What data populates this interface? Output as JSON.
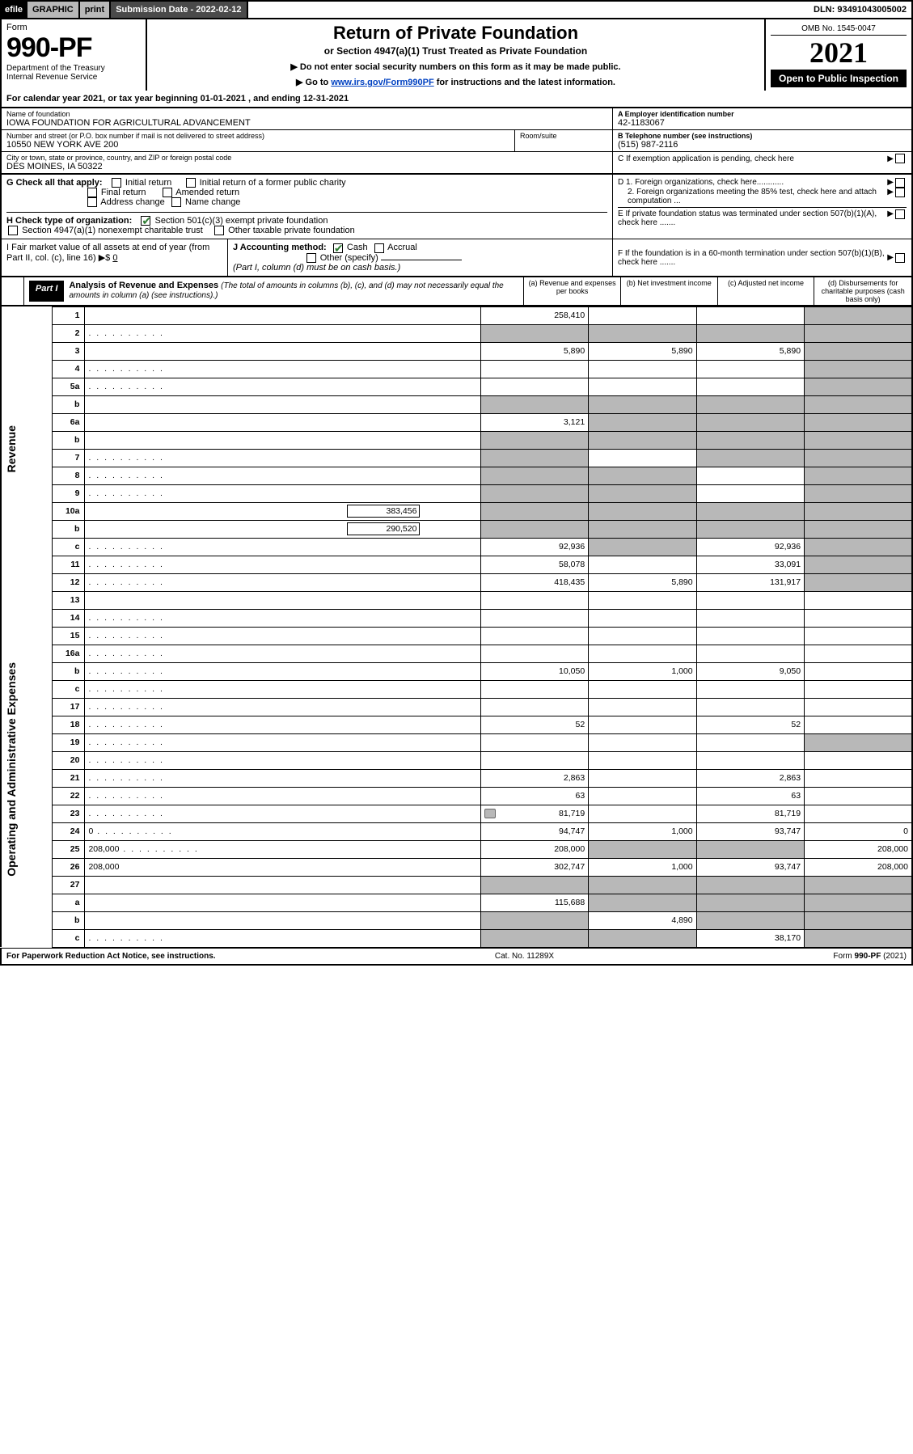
{
  "topbar": {
    "efile": "efile",
    "graphic": "GRAPHIC",
    "print": "print",
    "submission_label": "Submission Date - 2022-02-12",
    "dln": "DLN: 93491043005002"
  },
  "header": {
    "form_word": "Form",
    "form_no": "990-PF",
    "dept1": "Department of the Treasury",
    "dept2": "Internal Revenue Service",
    "title": "Return of Private Foundation",
    "subtitle": "or Section 4947(a)(1) Trust Treated as Private Foundation",
    "instr1": "▶ Do not enter social security numbers on this form as it may be made public.",
    "instr2_pre": "▶ Go to ",
    "instr2_link": "www.irs.gov/Form990PF",
    "instr2_post": " for instructions and the latest information.",
    "omb": "OMB No. 1545-0047",
    "year": "2021",
    "open": "Open to Public Inspection"
  },
  "calyear": "For calendar year 2021, or tax year beginning 01-01-2021             , and ending 12-31-2021",
  "info": {
    "name_label": "Name of foundation",
    "name": "IOWA FOUNDATION FOR AGRICULTURAL ADVANCEMENT",
    "addr_label": "Number and street (or P.O. box number if mail is not delivered to street address)",
    "addr": "10550 NEW YORK AVE 200",
    "room_label": "Room/suite",
    "city_label": "City or town, state or province, country, and ZIP or foreign postal code",
    "city": "DES MOINES, IA  50322",
    "ein_label": "A Employer identification number",
    "ein": "42-1183067",
    "tel_label": "B Telephone number (see instructions)",
    "tel": "(515) 987-2116",
    "c": "C If exemption application is pending, check here",
    "d1": "D 1. Foreign organizations, check here............",
    "d2": "2. Foreign organizations meeting the 85% test, check here and attach computation ...",
    "e": "E  If private foundation status was terminated under section 507(b)(1)(A), check here .......",
    "f": "F  If the foundation is in a 60-month termination under section 507(b)(1)(B), check here .......",
    "g_label": "G Check all that apply:",
    "g_opts": [
      "Initial return",
      "Final return",
      "Address change",
      "Initial return of a former public charity",
      "Amended return",
      "Name change"
    ],
    "h_label": "H Check type of organization:",
    "h1": "Section 501(c)(3) exempt private foundation",
    "h2": "Section 4947(a)(1) nonexempt charitable trust",
    "h3": "Other taxable private foundation",
    "i_label": "I Fair market value of all assets at end of year (from Part II, col. (c), line 16) ▶$",
    "i_val": "0",
    "j_label": "J Accounting method:",
    "j_cash": "Cash",
    "j_accr": "Accrual",
    "j_other": "Other (specify)",
    "j_note": "(Part I, column (d) must be on cash basis.)"
  },
  "part1": {
    "tab": "Part I",
    "title": "Analysis of Revenue and Expenses",
    "title_sub": " (The total of amounts in columns (b), (c), and (d) may not necessarily equal the amounts in column (a) (see instructions).)",
    "cols": {
      "a": "(a)   Revenue and expenses per books",
      "b": "(b)   Net investment income",
      "c": "(c)   Adjusted net income",
      "d": "(d)   Disbursements for charitable purposes (cash basis only)"
    }
  },
  "sidelabels": {
    "rev": "Revenue",
    "exp": "Operating and Administrative Expenses"
  },
  "rows": [
    {
      "n": "1",
      "d": "",
      "a": "258,410",
      "b": "",
      "c": "",
      "dgrey": true
    },
    {
      "n": "2",
      "d": "",
      "dots": true,
      "a": "",
      "b": "",
      "c": "",
      "allgrey": true
    },
    {
      "n": "3",
      "d": "",
      "a": "5,890",
      "b": "5,890",
      "c": "5,890",
      "dgrey": true
    },
    {
      "n": "4",
      "d": "",
      "dots": true,
      "a": "",
      "b": "",
      "c": "",
      "dgrey": true
    },
    {
      "n": "5a",
      "d": "",
      "dots": true,
      "a": "",
      "b": "",
      "c": "",
      "dgrey": true
    },
    {
      "n": "b",
      "d": "",
      "inset": true,
      "a": "",
      "b": "",
      "c": "",
      "allgrey": true
    },
    {
      "n": "6a",
      "d": "",
      "a": "3,121",
      "b": "",
      "c": "",
      "bcd_grey": true
    },
    {
      "n": "b",
      "d": "",
      "inset": true,
      "a": "",
      "b": "",
      "c": "",
      "allgrey": true
    },
    {
      "n": "7",
      "d": "",
      "dots": true,
      "a": "",
      "b": "",
      "c": "",
      "agrey": true,
      "cdgrey": true
    },
    {
      "n": "8",
      "d": "",
      "dots": true,
      "a": "",
      "b": "",
      "c": "",
      "abgrey": true,
      "dgrey": true
    },
    {
      "n": "9",
      "d": "",
      "dots": true,
      "a": "",
      "b": "",
      "c": "",
      "abgrey": true,
      "dgrey": true
    },
    {
      "n": "10a",
      "d": "",
      "insetval": "383,456",
      "a": "",
      "b": "",
      "c": "",
      "allgrey": true
    },
    {
      "n": "b",
      "d": "",
      "dots": true,
      "insetval": "290,520",
      "a": "",
      "b": "",
      "c": "",
      "allgrey": true
    },
    {
      "n": "c",
      "d": "",
      "dots": true,
      "a": "92,936",
      "b": "",
      "c": "92,936",
      "bgrey": true,
      "dgrey": true
    },
    {
      "n": "11",
      "d": "",
      "dots": true,
      "a": "58,078",
      "b": "",
      "c": "33,091",
      "dgrey": true
    },
    {
      "n": "12",
      "d": "",
      "dots": true,
      "a": "418,435",
      "b": "5,890",
      "c": "131,917",
      "dgrey": true,
      "bold": true
    },
    {
      "n": "13",
      "d": "",
      "a": "",
      "b": "",
      "c": ""
    },
    {
      "n": "14",
      "d": "",
      "dots": true,
      "a": "",
      "b": "",
      "c": ""
    },
    {
      "n": "15",
      "d": "",
      "dots": true,
      "a": "",
      "b": "",
      "c": ""
    },
    {
      "n": "16a",
      "d": "",
      "dots": true,
      "a": "",
      "b": "",
      "c": ""
    },
    {
      "n": "b",
      "d": "",
      "dots": true,
      "a": "10,050",
      "b": "1,000",
      "c": "9,050"
    },
    {
      "n": "c",
      "d": "",
      "dots": true,
      "a": "",
      "b": "",
      "c": ""
    },
    {
      "n": "17",
      "d": "",
      "dots": true,
      "a": "",
      "b": "",
      "c": ""
    },
    {
      "n": "18",
      "d": "",
      "dots": true,
      "a": "52",
      "b": "",
      "c": "52"
    },
    {
      "n": "19",
      "d": "",
      "dots": true,
      "a": "",
      "b": "",
      "c": "",
      "dgrey": true
    },
    {
      "n": "20",
      "d": "",
      "dots": true,
      "a": "",
      "b": "",
      "c": ""
    },
    {
      "n": "21",
      "d": "",
      "dots": true,
      "a": "2,863",
      "b": "",
      "c": "2,863"
    },
    {
      "n": "22",
      "d": "",
      "dots": true,
      "a": "63",
      "b": "",
      "c": "63"
    },
    {
      "n": "23",
      "d": "",
      "dots": true,
      "icon": true,
      "a": "81,719",
      "b": "",
      "c": "81,719"
    },
    {
      "n": "24",
      "d": "0",
      "dots": true,
      "a": "94,747",
      "b": "1,000",
      "c": "93,747"
    },
    {
      "n": "25",
      "d": "208,000",
      "dots": true,
      "a": "208,000",
      "b": "",
      "c": "",
      "bcgrey": true
    },
    {
      "n": "26",
      "d": "208,000",
      "a": "302,747",
      "b": "1,000",
      "c": "93,747"
    },
    {
      "n": "27",
      "d": "",
      "a": "",
      "b": "",
      "c": "",
      "allgrey": true
    },
    {
      "n": "a",
      "d": "",
      "a": "115,688",
      "b": "",
      "c": "",
      "bcd_grey": true
    },
    {
      "n": "b",
      "d": "",
      "a": "",
      "b": "4,890",
      "c": "",
      "agrey": true,
      "cdgrey": true
    },
    {
      "n": "c",
      "d": "",
      "dots": true,
      "a": "",
      "b": "",
      "c": "38,170",
      "abgrey": true,
      "dgrey": true
    }
  ],
  "footer": {
    "left": "For Paperwork Reduction Act Notice, see instructions.",
    "mid": "Cat. No. 11289X",
    "right": "Form 990-PF (2021)"
  },
  "colors": {
    "accent": "#0041c2",
    "grey": "#b8b8b8",
    "darkgrey": "#4a4a4a",
    "green": "#2e7d32"
  }
}
